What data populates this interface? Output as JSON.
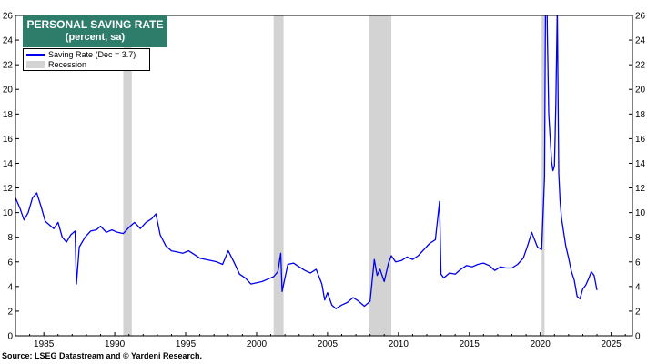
{
  "chart_data": {
    "type": "line",
    "title": "PERSONAL SAVING RATE",
    "subtitle": "(percent, sa)",
    "xlabel": "",
    "ylabel": "",
    "xlim": [
      1983.0,
      2026.5
    ],
    "ylim": [
      0,
      26
    ],
    "x_ticks": [
      1985,
      1990,
      1995,
      2000,
      2005,
      2010,
      2015,
      2020,
      2025
    ],
    "y_ticks": [
      0,
      2,
      4,
      6,
      8,
      10,
      12,
      14,
      16,
      18,
      20,
      22,
      24,
      26
    ],
    "grid": false,
    "legend_position": "top-left",
    "series": [
      {
        "name": "Saving Rate (Dec = 3.7)",
        "color": "#0000ee",
        "x": [
          1983.0,
          1983.3,
          1983.6,
          1983.9,
          1984.2,
          1984.5,
          1984.8,
          1985.1,
          1985.4,
          1985.7,
          1986.0,
          1986.3,
          1986.6,
          1986.9,
          1987.2,
          1987.3,
          1987.5,
          1987.9,
          1988.3,
          1988.7,
          1989.0,
          1989.4,
          1989.8,
          1990.2,
          1990.6,
          1991.0,
          1991.4,
          1991.8,
          1992.2,
          1992.6,
          1992.9,
          1993.2,
          1993.6,
          1994.0,
          1994.4,
          1994.8,
          1995.2,
          1995.6,
          1996.0,
          1996.4,
          1996.8,
          1997.2,
          1997.6,
          1998.0,
          1998.4,
          1998.8,
          1999.2,
          1999.6,
          2000.0,
          2000.4,
          2000.8,
          2001.2,
          2001.5,
          2001.7,
          2001.8,
          2002.2,
          2002.6,
          2003.0,
          2003.4,
          2003.8,
          2004.2,
          2004.6,
          2004.8,
          2005.0,
          2005.3,
          2005.6,
          2006.0,
          2006.4,
          2006.8,
          2007.2,
          2007.6,
          2008.0,
          2008.3,
          2008.5,
          2008.7,
          2009.0,
          2009.3,
          2009.5,
          2009.8,
          2010.2,
          2010.6,
          2011.0,
          2011.4,
          2011.8,
          2012.2,
          2012.6,
          2012.9,
          2013.0,
          2013.2,
          2013.6,
          2014.0,
          2014.4,
          2014.8,
          2015.2,
          2015.6,
          2016.0,
          2016.4,
          2016.8,
          2017.2,
          2017.6,
          2018.0,
          2018.4,
          2018.8,
          2019.1,
          2019.4,
          2019.8,
          2020.1,
          2020.3,
          2020.4,
          2020.5,
          2020.6,
          2020.8,
          2020.9,
          2021.0,
          2021.1,
          2021.2,
          2021.3,
          2021.4,
          2021.5,
          2021.6,
          2021.8,
          2022.0,
          2022.2,
          2022.4,
          2022.6,
          2022.8,
          2023.0,
          2023.2,
          2023.4,
          2023.6,
          2023.8,
          2024.0
        ],
        "y": [
          11.2,
          10.4,
          9.4,
          10.0,
          11.2,
          11.6,
          10.5,
          9.3,
          9.0,
          8.7,
          9.2,
          8.0,
          7.6,
          8.2,
          8.5,
          4.2,
          7.2,
          8.0,
          8.5,
          8.6,
          8.9,
          8.4,
          8.6,
          8.4,
          8.3,
          8.8,
          9.2,
          8.7,
          9.2,
          9.5,
          9.9,
          8.2,
          7.3,
          6.9,
          6.8,
          6.7,
          6.9,
          6.6,
          6.3,
          6.2,
          6.1,
          6.0,
          5.8,
          6.9,
          6.0,
          5.0,
          4.7,
          4.2,
          4.3,
          4.4,
          4.6,
          4.8,
          5.2,
          6.7,
          3.6,
          5.8,
          5.9,
          5.6,
          5.3,
          5.1,
          5.4,
          4.2,
          2.9,
          3.5,
          2.5,
          2.2,
          2.5,
          2.7,
          3.1,
          2.8,
          2.4,
          2.8,
          6.2,
          4.9,
          5.4,
          4.4,
          5.9,
          6.5,
          6.0,
          6.1,
          6.4,
          6.2,
          6.5,
          7.0,
          7.5,
          7.8,
          10.9,
          5.0,
          4.7,
          5.1,
          5.0,
          5.4,
          5.7,
          5.6,
          5.8,
          5.9,
          5.7,
          5.3,
          5.6,
          5.5,
          5.5,
          5.8,
          6.3,
          7.3,
          8.4,
          7.2,
          7.0,
          12.9,
          33.0,
          24.5,
          18.0,
          14.1,
          13.4,
          13.8,
          18.8,
          26.6,
          13.2,
          10.9,
          9.5,
          8.8,
          7.3,
          6.3,
          5.2,
          4.5,
          3.2,
          3.0,
          3.8,
          4.1,
          4.6,
          5.2,
          4.9,
          3.7
        ]
      }
    ],
    "recession_bands": [
      [
        1990.6,
        1991.2
      ],
      [
        2001.2,
        2001.9
      ],
      [
        2007.9,
        2009.5
      ],
      [
        2020.1,
        2020.3
      ]
    ]
  },
  "legend": {
    "series_label": "Saving Rate (Dec = 3.7)",
    "recession_label": "Recession"
  },
  "source_note": "Source: LSEG Datastream and © Yardeni Research."
}
